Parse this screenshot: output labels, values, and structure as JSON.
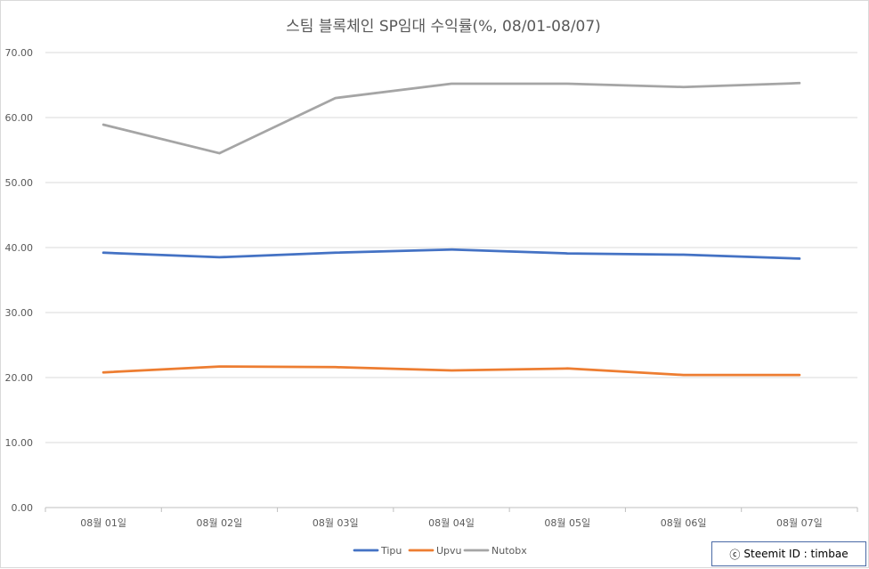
{
  "chart_data": {
    "type": "line",
    "title": "스팀 블록체인 SP임대 수익률(%, 08/01-08/07)",
    "categories": [
      "08월 01일",
      "08월 02일",
      "08월 03일",
      "08월 04일",
      "08월 05일",
      "08월 06일",
      "08월 07일"
    ],
    "y_ticks": [
      "0.00",
      "10.00",
      "20.00",
      "30.00",
      "40.00",
      "50.00",
      "60.00",
      "70.00"
    ],
    "ylim": [
      0,
      70
    ],
    "grid": true,
    "legend_position": "bottom",
    "series": [
      {
        "name": "Tipu",
        "color": "#4472c4",
        "values": [
          39.2,
          38.5,
          39.2,
          39.7,
          39.1,
          38.9,
          38.3
        ]
      },
      {
        "name": "Upvu",
        "color": "#ed7d31",
        "values": [
          20.8,
          21.7,
          21.6,
          21.1,
          21.4,
          20.4,
          20.4
        ]
      },
      {
        "name": "Nutobx",
        "color": "#a5a5a5",
        "values": [
          58.9,
          54.5,
          63.0,
          65.2,
          65.2,
          64.7,
          65.3
        ]
      }
    ]
  },
  "credit": {
    "symbol": "ⓒ",
    "text": "Steemit ID : timbae"
  }
}
